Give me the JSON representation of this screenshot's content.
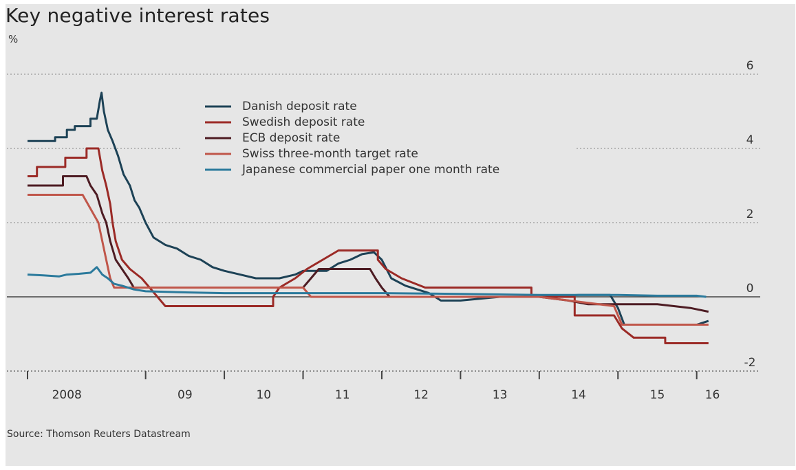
{
  "chart_data": {
    "type": "line",
    "title": "Key negative interest rates",
    "ylabel": "%",
    "source": "Source: Thomson Reuters Datastream",
    "ylim": [
      -2,
      6
    ],
    "xlim": [
      2007.5,
      2016.3
    ],
    "yticks": [
      {
        "v": 6,
        "label": "6"
      },
      {
        "v": 4,
        "label": "4"
      },
      {
        "v": 2,
        "label": "2"
      },
      {
        "v": 0,
        "label": "0"
      },
      {
        "v": -2,
        "label": "-2"
      }
    ],
    "xticks": [
      2007.5,
      2009.0,
      2010.0,
      2011.0,
      2012.0,
      2013.0,
      2014.0,
      2015.0,
      2016.0
    ],
    "xlabels": [
      {
        "x": 2008.0,
        "label": "2008"
      },
      {
        "x": 2009.5,
        "label": "09"
      },
      {
        "x": 2010.5,
        "label": "10"
      },
      {
        "x": 2011.5,
        "label": "11"
      },
      {
        "x": 2012.5,
        "label": "12"
      },
      {
        "x": 2013.5,
        "label": "13"
      },
      {
        "x": 2014.5,
        "label": "14"
      },
      {
        "x": 2015.5,
        "label": "15"
      },
      {
        "x": 2016.2,
        "label": "16"
      }
    ],
    "grid": "dotted horizontal",
    "legend_position": "top-center",
    "series": [
      {
        "name": "Danish deposit rate",
        "color": "#1d4256",
        "points": [
          [
            2007.5,
            4.2
          ],
          [
            2007.85,
            4.2
          ],
          [
            2007.85,
            4.3
          ],
          [
            2008.0,
            4.3
          ],
          [
            2008.0,
            4.5
          ],
          [
            2008.1,
            4.5
          ],
          [
            2008.1,
            4.6
          ],
          [
            2008.3,
            4.6
          ],
          [
            2008.3,
            4.8
          ],
          [
            2008.38,
            4.8
          ],
          [
            2008.42,
            5.3
          ],
          [
            2008.44,
            5.5
          ],
          [
            2008.47,
            5.0
          ],
          [
            2008.52,
            4.5
          ],
          [
            2008.58,
            4.2
          ],
          [
            2008.65,
            3.8
          ],
          [
            2008.72,
            3.3
          ],
          [
            2008.8,
            3.0
          ],
          [
            2008.86,
            2.6
          ],
          [
            2008.92,
            2.4
          ],
          [
            2009.0,
            2.0
          ],
          [
            2009.1,
            1.6
          ],
          [
            2009.25,
            1.4
          ],
          [
            2009.4,
            1.3
          ],
          [
            2009.55,
            1.1
          ],
          [
            2009.7,
            1.0
          ],
          [
            2009.85,
            0.8
          ],
          [
            2010.0,
            0.7
          ],
          [
            2010.2,
            0.6
          ],
          [
            2010.4,
            0.5
          ],
          [
            2010.7,
            0.5
          ],
          [
            2010.9,
            0.6
          ],
          [
            2011.0,
            0.7
          ],
          [
            2011.3,
            0.7
          ],
          [
            2011.45,
            0.9
          ],
          [
            2011.6,
            1.0
          ],
          [
            2011.75,
            1.15
          ],
          [
            2011.9,
            1.2
          ],
          [
            2012.0,
            1.0
          ],
          [
            2012.12,
            0.5
          ],
          [
            2012.3,
            0.3
          ],
          [
            2012.45,
            0.2
          ],
          [
            2012.6,
            0.1
          ],
          [
            2012.75,
            -0.1
          ],
          [
            2013.0,
            -0.1
          ],
          [
            2013.5,
            0.0
          ],
          [
            2014.0,
            0.0
          ],
          [
            2014.5,
            0.05
          ],
          [
            2014.9,
            0.05
          ],
          [
            2015.0,
            -0.3
          ],
          [
            2015.08,
            -0.75
          ],
          [
            2015.5,
            -0.75
          ],
          [
            2016.0,
            -0.75
          ],
          [
            2016.15,
            -0.65
          ]
        ]
      },
      {
        "name": "Swedish deposit rate",
        "color": "#9b2a26",
        "points": [
          [
            2007.5,
            3.25
          ],
          [
            2007.62,
            3.25
          ],
          [
            2007.62,
            3.5
          ],
          [
            2007.98,
            3.5
          ],
          [
            2007.98,
            3.75
          ],
          [
            2008.25,
            3.75
          ],
          [
            2008.25,
            4.0
          ],
          [
            2008.4,
            4.0
          ],
          [
            2008.45,
            3.4
          ],
          [
            2008.5,
            3.0
          ],
          [
            2008.55,
            2.5
          ],
          [
            2008.58,
            2.0
          ],
          [
            2008.62,
            1.5
          ],
          [
            2008.7,
            1.0
          ],
          [
            2008.8,
            0.75
          ],
          [
            2008.95,
            0.5
          ],
          [
            2009.05,
            0.25
          ],
          [
            2009.25,
            -0.25
          ],
          [
            2009.85,
            -0.25
          ],
          [
            2010.0,
            -0.25
          ],
          [
            2010.5,
            -0.25
          ],
          [
            2010.62,
            -0.25
          ],
          [
            2010.62,
            0.0
          ],
          [
            2010.7,
            0.25
          ],
          [
            2010.9,
            0.5
          ],
          [
            2011.05,
            0.75
          ],
          [
            2011.25,
            1.0
          ],
          [
            2011.45,
            1.25
          ],
          [
            2011.95,
            1.25
          ],
          [
            2011.95,
            1.0
          ],
          [
            2012.05,
            0.75
          ],
          [
            2012.25,
            0.5
          ],
          [
            2012.55,
            0.25
          ],
          [
            2013.0,
            0.25
          ],
          [
            2013.9,
            0.25
          ],
          [
            2013.9,
            0.0
          ],
          [
            2014.45,
            0.0
          ],
          [
            2014.45,
            -0.5
          ],
          [
            2014.95,
            -0.5
          ],
          [
            2015.05,
            -0.85
          ],
          [
            2015.2,
            -1.1
          ],
          [
            2015.6,
            -1.1
          ],
          [
            2015.6,
            -1.25
          ],
          [
            2016.1,
            -1.25
          ],
          [
            2016.15,
            -1.25
          ]
        ]
      },
      {
        "name": "ECB deposit rate",
        "color": "#4d1c23",
        "points": [
          [
            2007.5,
            3.0
          ],
          [
            2007.95,
            3.0
          ],
          [
            2007.95,
            3.25
          ],
          [
            2008.25,
            3.25
          ],
          [
            2008.3,
            3.0
          ],
          [
            2008.38,
            2.75
          ],
          [
            2008.45,
            2.25
          ],
          [
            2008.5,
            2.0
          ],
          [
            2008.55,
            1.5
          ],
          [
            2008.62,
            1.0
          ],
          [
            2008.7,
            0.75
          ],
          [
            2008.78,
            0.5
          ],
          [
            2008.85,
            0.25
          ],
          [
            2009.0,
            0.25
          ],
          [
            2010.0,
            0.25
          ],
          [
            2011.0,
            0.25
          ],
          [
            2011.1,
            0.5
          ],
          [
            2011.2,
            0.75
          ],
          [
            2011.85,
            0.75
          ],
          [
            2011.92,
            0.5
          ],
          [
            2012.0,
            0.25
          ],
          [
            2012.1,
            0.0
          ],
          [
            2013.0,
            0.0
          ],
          [
            2014.0,
            0.0
          ],
          [
            2014.37,
            -0.1
          ],
          [
            2014.62,
            -0.2
          ],
          [
            2015.5,
            -0.2
          ],
          [
            2015.92,
            -0.3
          ],
          [
            2016.15,
            -0.4
          ]
        ]
      },
      {
        "name": "Swiss three-month target rate",
        "color": "#c0564a",
        "points": [
          [
            2007.5,
            2.75
          ],
          [
            2007.85,
            2.75
          ],
          [
            2008.2,
            2.75
          ],
          [
            2008.4,
            2.0
          ],
          [
            2008.45,
            1.5
          ],
          [
            2008.5,
            1.0
          ],
          [
            2008.55,
            0.5
          ],
          [
            2008.6,
            0.25
          ],
          [
            2009.0,
            0.25
          ],
          [
            2010.0,
            0.25
          ],
          [
            2011.0,
            0.25
          ],
          [
            2011.1,
            0.0
          ],
          [
            2012.0,
            0.0
          ],
          [
            2013.0,
            0.0
          ],
          [
            2014.0,
            0.0
          ],
          [
            2014.95,
            -0.25
          ],
          [
            2015.05,
            -0.75
          ],
          [
            2016.15,
            -0.75
          ]
        ]
      },
      {
        "name": "Japanese commercial paper one month rate",
        "color": "#2b7a9c",
        "points": [
          [
            2007.5,
            0.6
          ],
          [
            2007.7,
            0.58
          ],
          [
            2007.9,
            0.55
          ],
          [
            2008.0,
            0.6
          ],
          [
            2008.15,
            0.62
          ],
          [
            2008.3,
            0.65
          ],
          [
            2008.38,
            0.8
          ],
          [
            2008.45,
            0.6
          ],
          [
            2008.52,
            0.5
          ],
          [
            2008.6,
            0.35
          ],
          [
            2008.7,
            0.3
          ],
          [
            2008.85,
            0.2
          ],
          [
            2009.0,
            0.15
          ],
          [
            2009.5,
            0.12
          ],
          [
            2010.0,
            0.1
          ],
          [
            2011.0,
            0.1
          ],
          [
            2012.0,
            0.1
          ],
          [
            2013.0,
            0.08
          ],
          [
            2014.0,
            0.05
          ],
          [
            2015.0,
            0.05
          ],
          [
            2015.5,
            0.03
          ],
          [
            2016.0,
            0.03
          ],
          [
            2016.12,
            0.0
          ]
        ]
      }
    ]
  }
}
